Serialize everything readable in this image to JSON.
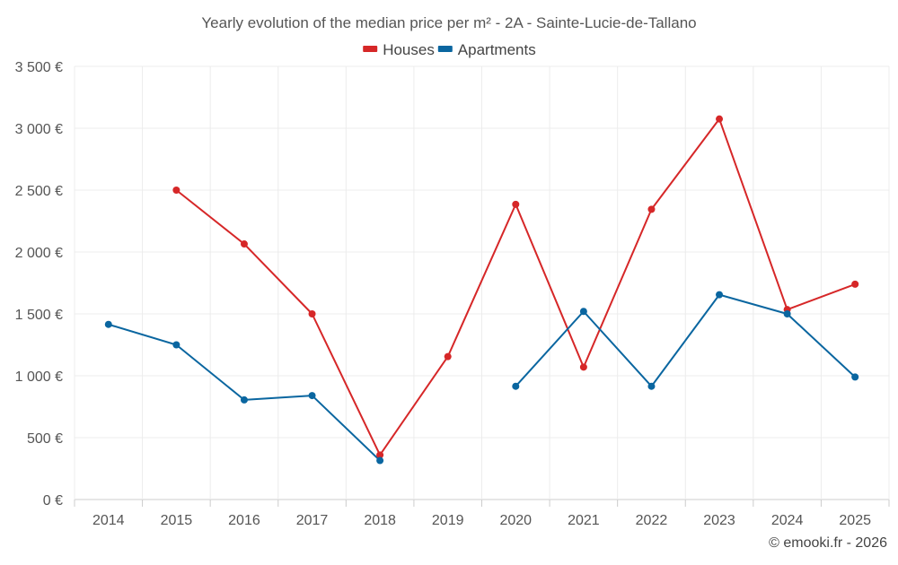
{
  "chart_data": {
    "type": "line",
    "title": "Yearly evolution of the median price per m² - 2A - Sainte-Lucie-de-Tallano",
    "xlabel": "",
    "ylabel": "",
    "categories": [
      "2014",
      "2015",
      "2016",
      "2017",
      "2018",
      "2019",
      "2020",
      "2021",
      "2022",
      "2023",
      "2024",
      "2025"
    ],
    "ylim": [
      0,
      3500
    ],
    "yticks": [
      0,
      500,
      1000,
      1500,
      2000,
      2500,
      3000,
      3500
    ],
    "ytick_labels": [
      "0 €",
      "500 €",
      "1 000 €",
      "1 500 €",
      "2 000 €",
      "2 500 €",
      "3 000 €",
      "3 500 €"
    ],
    "legend_position": "top-center",
    "grid": true,
    "series": [
      {
        "name": "Houses",
        "color": "#d62728",
        "values": [
          null,
          2500,
          2065,
          1500,
          360,
          1155,
          2385,
          1070,
          2345,
          3075,
          1535,
          1740
        ]
      },
      {
        "name": "Apartments",
        "color": "#0a66a0",
        "values": [
          1415,
          1250,
          805,
          840,
          315,
          null,
          915,
          1520,
          915,
          1655,
          1500,
          990
        ]
      }
    ]
  },
  "credit": "© emooki.fr - 2026"
}
